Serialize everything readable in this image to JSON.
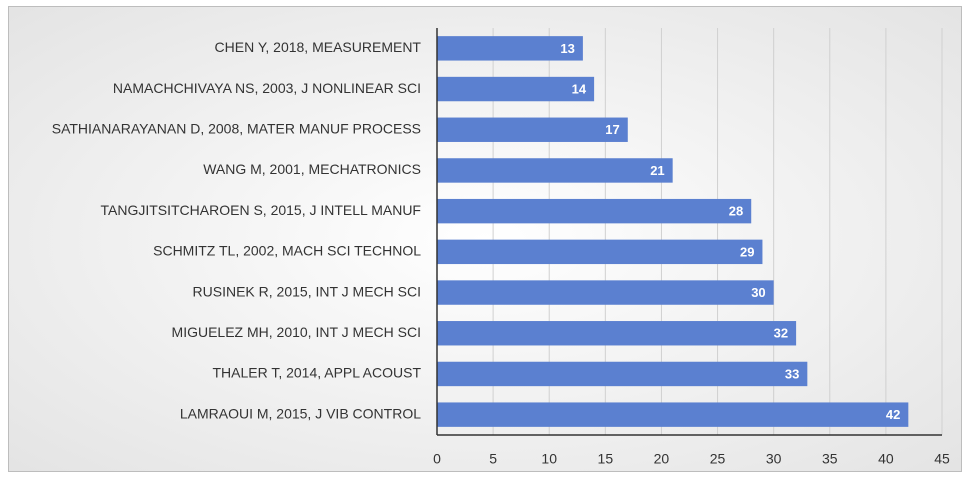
{
  "chart_data": {
    "type": "bar",
    "orientation": "horizontal",
    "categories": [
      "CHEN Y, 2018, MEASUREMENT",
      "NAMACHCHIVAYA NS, 2003, J NONLINEAR SCI",
      "SATHIANARAYANAN D, 2008, MATER MANUF PROCESS",
      "WANG M, 2001, MECHATRONICS",
      "TANGJITSITCHAROEN S, 2015, J INTELL MANUF",
      "SCHMITZ TL, 2002, MACH SCI TECHNOL",
      "RUSINEK R, 2015, INT J MECH SCI",
      "MIGUELEZ MH, 2010, INT J MECH SCI",
      "THALER T, 2014, APPL ACOUST",
      "LAMRAOUI M, 2015, J VIB CONTROL"
    ],
    "values": [
      13,
      14,
      17,
      21,
      28,
      29,
      30,
      32,
      33,
      42
    ],
    "color": "#5b80d0",
    "xlim": [
      0,
      45
    ],
    "xticks": [
      0,
      5,
      10,
      15,
      20,
      25,
      30,
      35,
      40,
      45
    ],
    "grid": true
  }
}
